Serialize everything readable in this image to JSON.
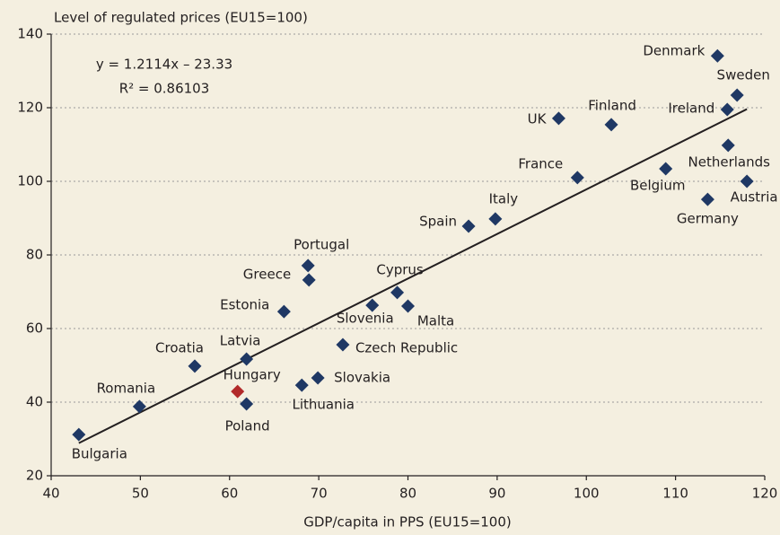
{
  "chart_data": {
    "type": "scatter",
    "y_label": "Level of regulated prices (EU15=100)",
    "x_label": "GDP/capita in PPS (EU15=100)",
    "xlim": [
      40,
      120
    ],
    "ylim": [
      20,
      140
    ],
    "xticks": [
      40,
      50,
      60,
      70,
      80,
      90,
      100,
      110,
      120
    ],
    "yticks": [
      20,
      40,
      60,
      80,
      100,
      120,
      140
    ],
    "grid": true,
    "labels": [
      "Bulgaria",
      "Romania",
      "Croatia",
      "Latvia",
      "Hungary",
      "Poland",
      "Lithuania",
      "Slovakia",
      "Czech Republic",
      "Estonia",
      "Slovenia",
      "Cyprus",
      "Malta",
      "Greece",
      "Portugal",
      "Spain",
      "Italy",
      "France",
      "Belgium",
      "Germany",
      "Austria",
      "Netherlands",
      "Ireland",
      "Sweden",
      "Finland",
      "UK",
      "Denmark"
    ],
    "x": [
      43.1,
      49.9,
      56.1,
      61.9,
      60.9,
      61.9,
      68.1,
      69.9,
      72.7,
      66.1,
      76.0,
      78.8,
      80.0,
      68.9,
      68.8,
      86.8,
      89.8,
      99.0,
      108.9,
      113.6,
      118.0,
      115.9,
      115.8,
      116.9,
      102.8,
      96.9,
      114.7
    ],
    "values": [
      31.2,
      38.8,
      49.8,
      51.7,
      42.9,
      39.5,
      44.6,
      46.6,
      55.6,
      64.6,
      66.3,
      69.8,
      66.1,
      73.2,
      77.1,
      87.8,
      89.8,
      101.0,
      103.4,
      95.1,
      100.0,
      109.8,
      119.5,
      123.4,
      115.4,
      117.1,
      134.1
    ],
    "colors": [
      "#1f3864",
      "#1f3864",
      "#1f3864",
      "#1f3864",
      "#b22a2a",
      "#1f3864",
      "#1f3864",
      "#1f3864",
      "#1f3864",
      "#1f3864",
      "#1f3864",
      "#1f3864",
      "#1f3864",
      "#1f3864",
      "#1f3864",
      "#1f3864",
      "#1f3864",
      "#1f3864",
      "#1f3864",
      "#1f3864",
      "#1f3864",
      "#1f3864",
      "#1f3864",
      "#1f3864",
      "#1f3864",
      "#1f3864",
      "#1f3864"
    ],
    "trendline": {
      "equation": "y = 1.2114x – 23.33",
      "r2_label": "R² = 0.86103",
      "slope": 1.2114,
      "intercept": -23.33,
      "color": "#231f20"
    }
  }
}
